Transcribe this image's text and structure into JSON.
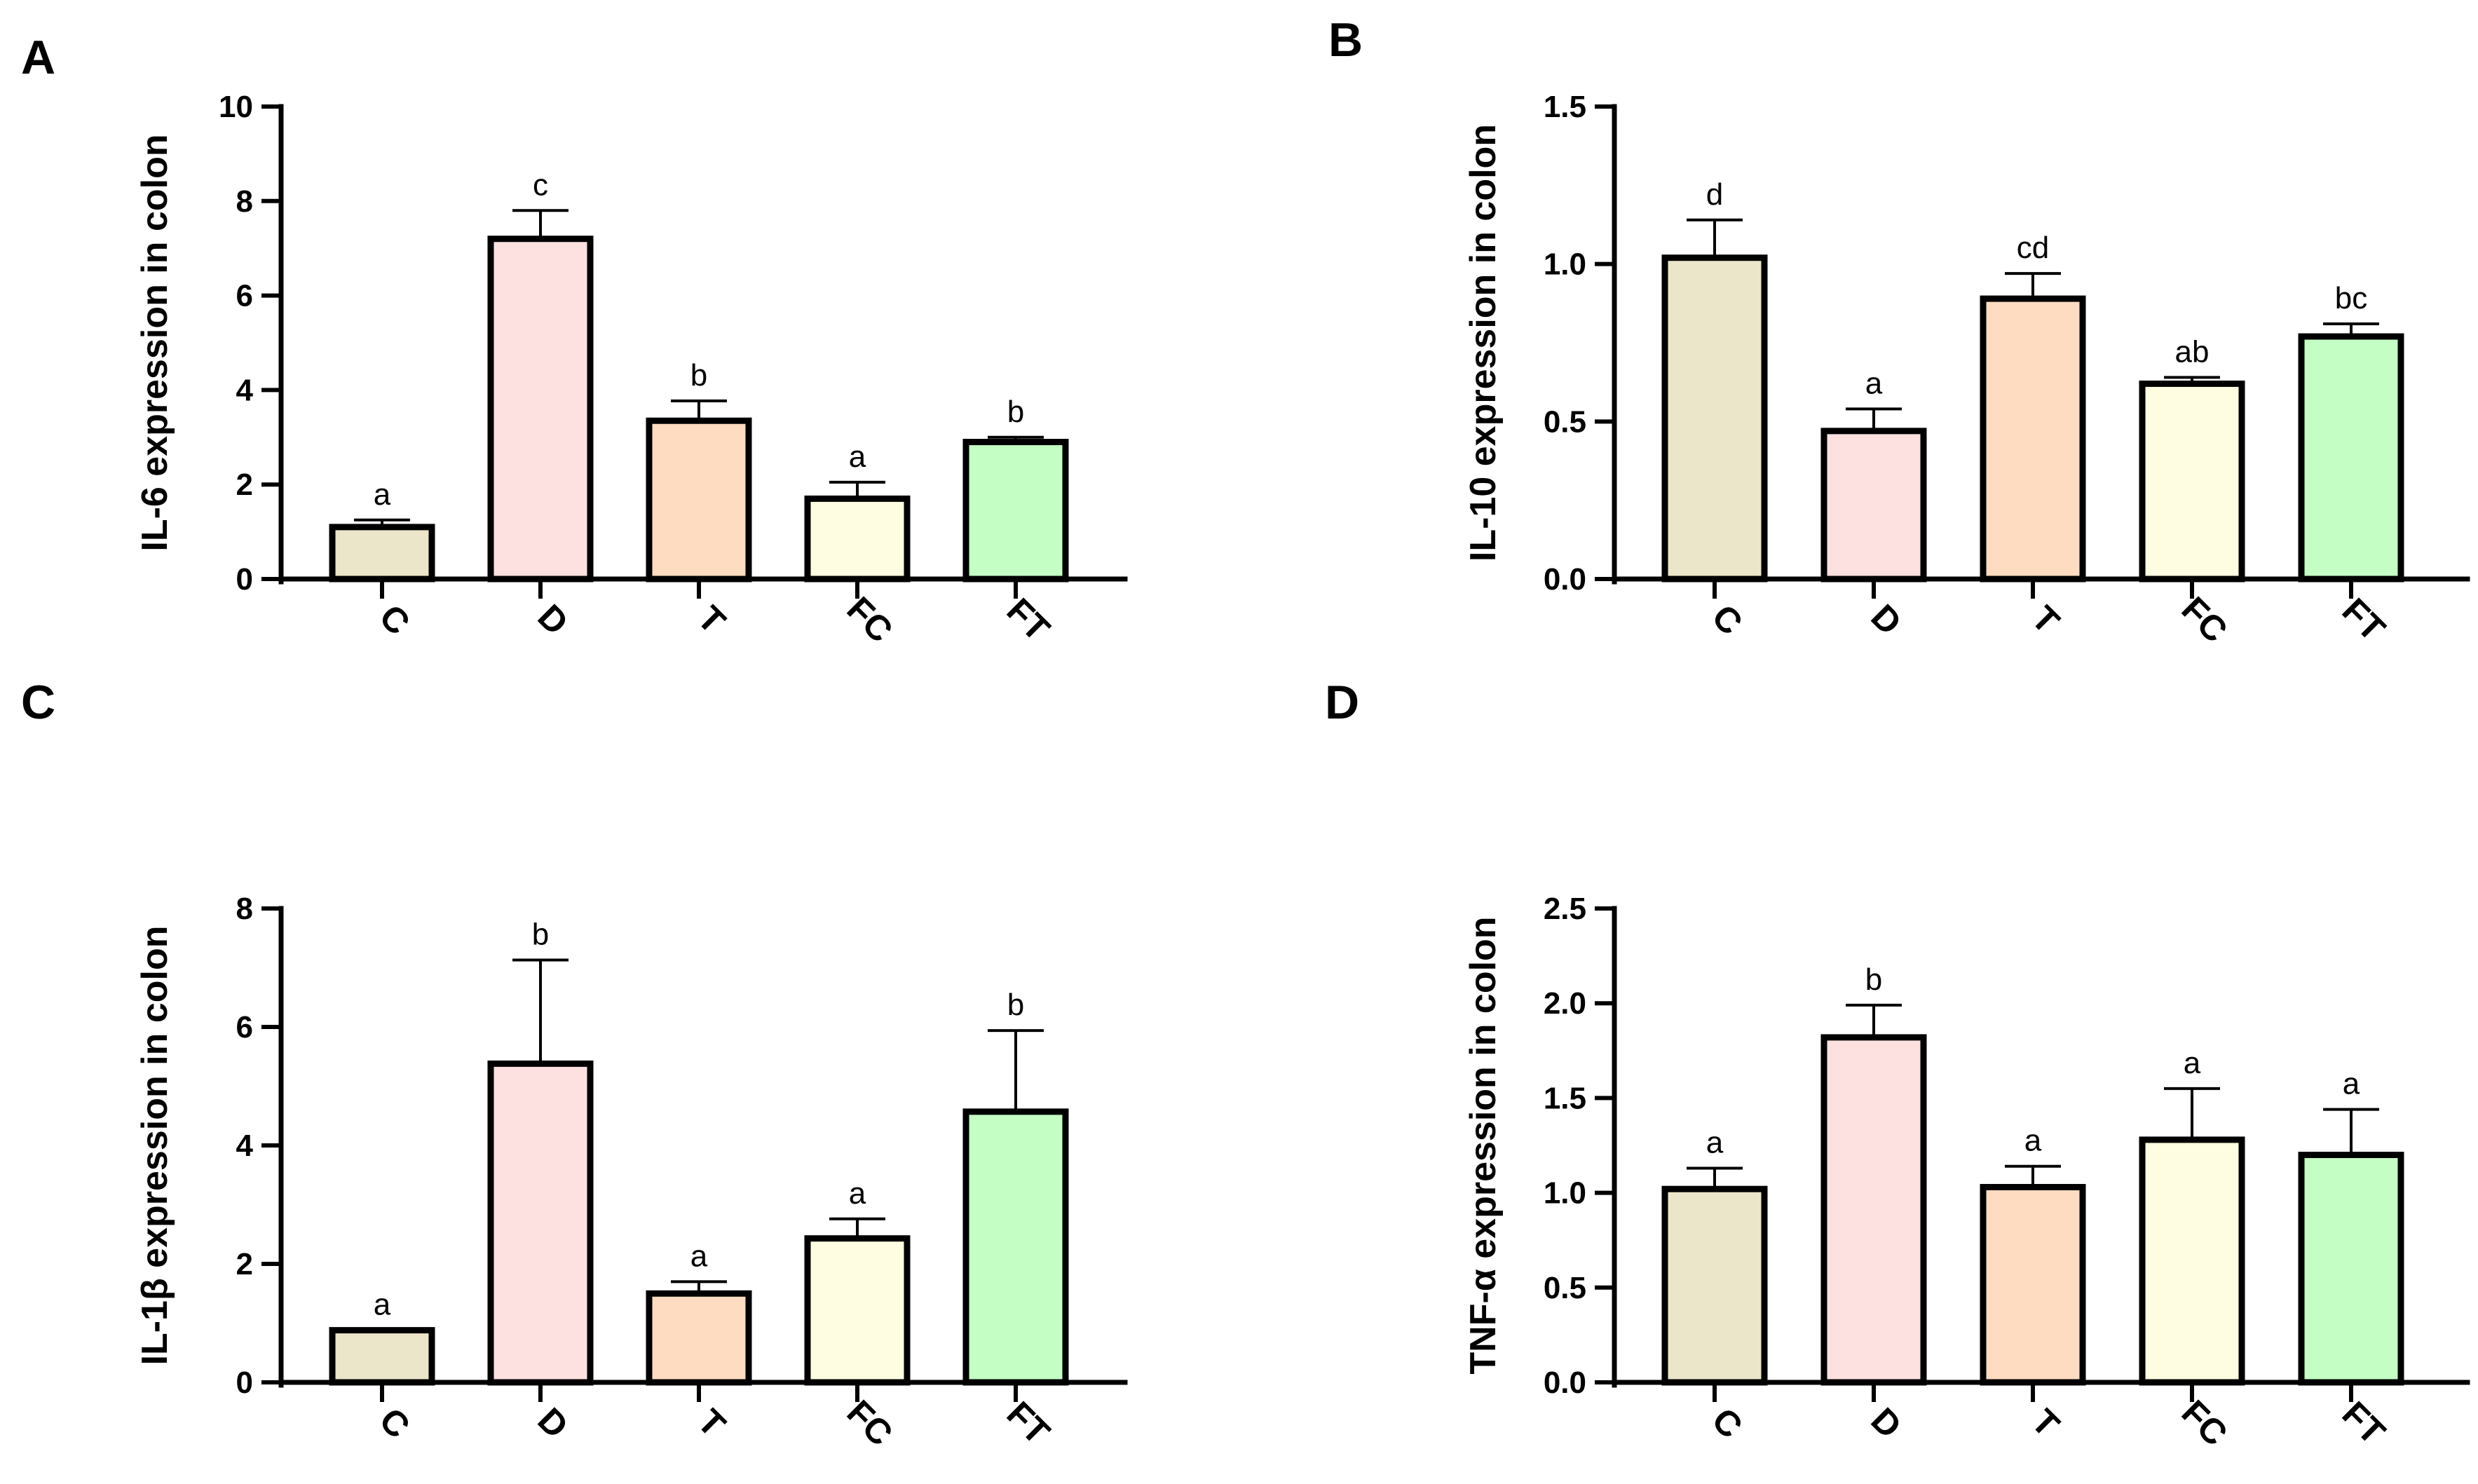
{
  "chart_data": [
    {
      "panel": "A",
      "type": "bar",
      "ylabel": "IL-6 expression in colon",
      "categories": [
        "C",
        "D",
        "T",
        "FC",
        "FT"
      ],
      "values": [
        1.1,
        7.2,
        3.35,
        1.7,
        2.9
      ],
      "errors": [
        0.15,
        0.6,
        0.42,
        0.35,
        0.1
      ],
      "significance": [
        "a",
        "c",
        "b",
        "a",
        "b"
      ],
      "ylim": [
        0,
        10
      ],
      "yticks": [
        "0",
        "2",
        "4",
        "6",
        "8",
        "10"
      ],
      "colors": [
        "#ebe5c9",
        "#fde1e1",
        "#fddcc1",
        "#fefde1",
        "#c5fec5"
      ]
    },
    {
      "panel": "B",
      "type": "bar",
      "ylabel": "IL-10 expression in colon",
      "categories": [
        "C",
        "D",
        "T",
        "FC",
        "FT"
      ],
      "values": [
        1.02,
        0.47,
        0.89,
        0.62,
        0.77
      ],
      "errors": [
        0.12,
        0.07,
        0.08,
        0.02,
        0.04
      ],
      "significance": [
        "d",
        "a",
        "cd",
        "ab",
        "bc"
      ],
      "ylim": [
        0,
        1.5
      ],
      "yticks": [
        "0.0",
        "0.5",
        "1.0",
        "1.5"
      ],
      "colors": [
        "#ebe5c9",
        "#fde1e1",
        "#fddcc1",
        "#fefde1",
        "#c5fec5"
      ]
    },
    {
      "panel": "C",
      "type": "bar",
      "ylabel": "IL-1β expression in colon",
      "categories": [
        "C",
        "D",
        "T",
        "FC",
        "FT"
      ],
      "values": [
        0.88,
        5.38,
        1.5,
        2.43,
        4.57
      ],
      "errors": [
        0.0,
        1.75,
        0.2,
        0.33,
        1.37
      ],
      "significance": [
        "a",
        "b",
        "a",
        "a",
        "b"
      ],
      "ylim": [
        0,
        8
      ],
      "yticks": [
        "0",
        "2",
        "4",
        "6",
        "8"
      ],
      "colors": [
        "#ebe5c9",
        "#fde1e1",
        "#fddcc1",
        "#fefde1",
        "#c5fec5"
      ]
    },
    {
      "panel": "D",
      "type": "bar",
      "ylabel": "TNF-α expression in colon",
      "categories": [
        "C",
        "D",
        "T",
        "FC",
        "FT"
      ],
      "values": [
        1.02,
        1.82,
        1.03,
        1.28,
        1.2
      ],
      "errors": [
        0.11,
        0.17,
        0.11,
        0.27,
        0.24
      ],
      "significance": [
        "a",
        "b",
        "a",
        "a",
        "a"
      ],
      "ylim": [
        0,
        2.5
      ],
      "yticks": [
        "0.0",
        "0.5",
        "1.0",
        "1.5",
        "2.0",
        "2.5"
      ],
      "colors": [
        "#ebe5c9",
        "#fde1e1",
        "#fddcc1",
        "#fefde1",
        "#c5fec5"
      ]
    }
  ]
}
